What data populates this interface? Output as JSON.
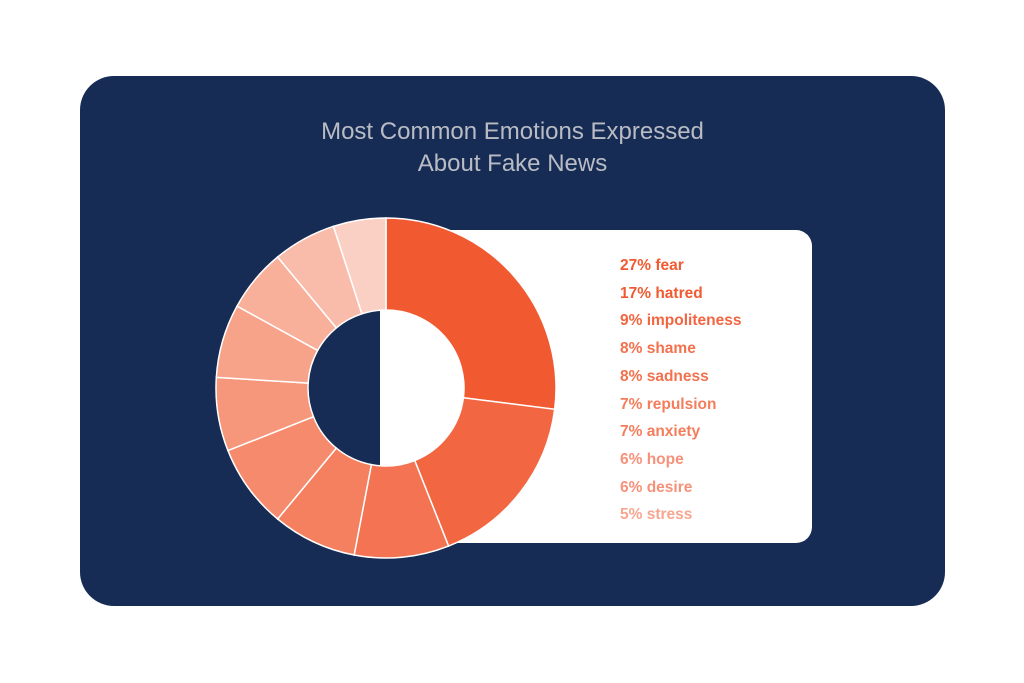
{
  "title": {
    "line1": "Most Common Emotions Expressed",
    "line2": "About Fake News"
  },
  "colors": {
    "card_background": "#172c54",
    "title": "#b9bcc4",
    "panel": "#ffffff",
    "divider": "#ffffff"
  },
  "chart_data": {
    "type": "pie",
    "variant": "donut",
    "slices": [
      {
        "label": "fear",
        "value": 27,
        "text": "27% fear",
        "color": "#f15a31",
        "text_color": "#f15a31"
      },
      {
        "label": "hatred",
        "value": 17,
        "text": "17% hatred",
        "color": "#f26642",
        "text_color": "#f15a31"
      },
      {
        "label": "impoliteness",
        "value": 9,
        "text": "9% impoliteness",
        "color": "#f37352",
        "text_color": "#f26540"
      },
      {
        "label": "shame",
        "value": 8,
        "text": "8% shame",
        "color": "#f4805f",
        "text_color": "#f3714d"
      },
      {
        "label": "sadness",
        "value": 8,
        "text": "8% sadness",
        "color": "#f58b6c",
        "text_color": "#f3714d"
      },
      {
        "label": "repulsion",
        "value": 7,
        "text": "7% repulsion",
        "color": "#f6967a",
        "text_color": "#f47d5c"
      },
      {
        "label": "anxiety",
        "value": 7,
        "text": "7% anxiety",
        "color": "#f7a38a",
        "text_color": "#f47d5c"
      },
      {
        "label": "hope",
        "value": 6,
        "text": "6% hope",
        "color": "#f8b09a",
        "text_color": "#f6917a"
      },
      {
        "label": "desire",
        "value": 6,
        "text": "6% desire",
        "color": "#f9bcab",
        "text_color": "#f6917a"
      },
      {
        "label": "stress",
        "value": 5,
        "text": "5% stress",
        "color": "#fbd0c4",
        "text_color": "#f7a690"
      }
    ]
  }
}
